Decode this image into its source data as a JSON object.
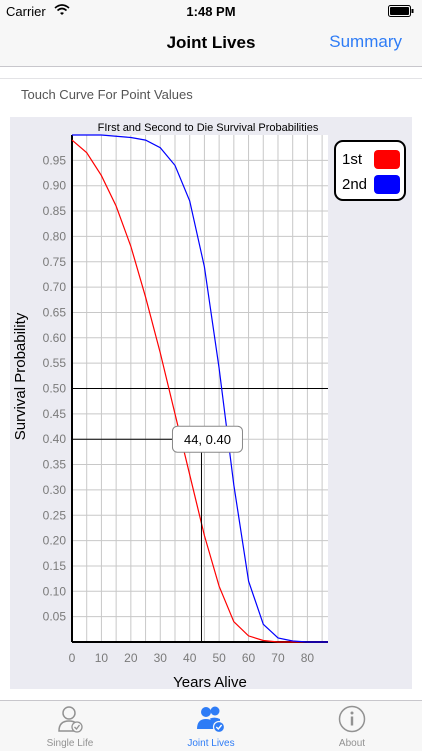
{
  "status": {
    "carrier": "Carrier",
    "time": "1:48 PM"
  },
  "nav": {
    "title": "Joint Lives",
    "summary_label": "Summary"
  },
  "hint": "Touch Curve For Point Values",
  "chart_data": {
    "type": "line",
    "title": "FIrst and Second to Die Survival Probabilities",
    "xlabel": "Years Alive",
    "ylabel": "Survival Probability",
    "xlim": [
      0,
      87
    ],
    "ylim": [
      0,
      1.0
    ],
    "x_ticks": [
      "0",
      "10",
      "20",
      "30",
      "40",
      "50",
      "60",
      "70",
      "80"
    ],
    "y_ticks": [
      "0.05",
      "0.10",
      "0.15",
      "0.20",
      "0.25",
      "0.30",
      "0.35",
      "0.40",
      "0.45",
      "0.50",
      "0.55",
      "0.60",
      "0.65",
      "0.70",
      "0.75",
      "0.80",
      "0.85",
      "0.90",
      "0.95"
    ],
    "grid": true,
    "legend_position": "top-right",
    "series": [
      {
        "name": "1st",
        "color": "#ff0000",
        "x": [
          0,
          5,
          10,
          15,
          20,
          25,
          30,
          35,
          40,
          45,
          50,
          55,
          60,
          65,
          70,
          75,
          80,
          87
        ],
        "y": [
          0.99,
          0.965,
          0.92,
          0.86,
          0.78,
          0.68,
          0.57,
          0.45,
          0.33,
          0.21,
          0.11,
          0.04,
          0.012,
          0.003,
          0.0,
          0.0,
          0.0,
          0.0
        ]
      },
      {
        "name": "2nd",
        "color": "#0000ff",
        "x": [
          0,
          10,
          20,
          25,
          30,
          35,
          40,
          45,
          50,
          55,
          60,
          65,
          70,
          75,
          80,
          87
        ],
        "y": [
          1.0,
          1.0,
          0.995,
          0.99,
          0.975,
          0.94,
          0.87,
          0.74,
          0.54,
          0.31,
          0.12,
          0.035,
          0.008,
          0.002,
          0.0,
          0.0
        ]
      }
    ],
    "crosshair": {
      "x": 44,
      "y": 0.4,
      "label": "44, 0.40"
    },
    "reference_line_y": 0.5
  },
  "tabs": [
    {
      "label": "Single Life",
      "icon": "single-person-icon",
      "active": false
    },
    {
      "label": "Joint Lives",
      "icon": "two-persons-icon",
      "active": true
    },
    {
      "label": "About",
      "icon": "info-icon",
      "active": false
    }
  ],
  "colors": {
    "accent": "#2e7cf6",
    "panel_bg": "#ebebf2",
    "tab_inactive": "#929292"
  }
}
